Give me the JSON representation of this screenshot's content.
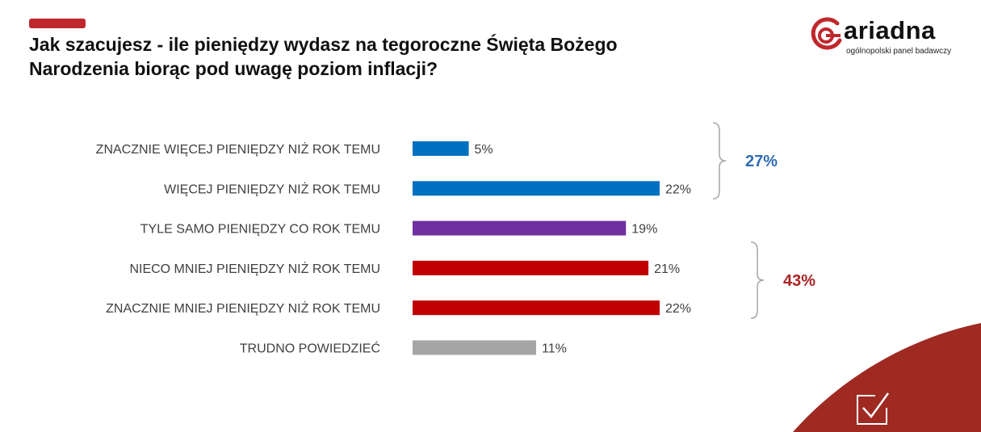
{
  "header": {
    "title_line1": "Jak szacujesz - ile pieniędzy wydasz na tegoroczne Święta Bożego",
    "title_line2": "Narodzenia biorąc pod uwagę poziom inflacji?"
  },
  "logo": {
    "wordmark": "ariadna",
    "tagline": "ogólnopolski panel badawczy",
    "color": "#c0282d"
  },
  "chart_data": {
    "type": "bar",
    "orientation": "horizontal",
    "categories": [
      "ZNACZNIE WIĘCEJ PIENIĘDZY NIŻ ROK TEMU",
      "WIĘCEJ PIENIĘDZY NIŻ ROK TEMU",
      "TYLE SAMO PIENIĘDZY CO ROK TEMU",
      "NIECO MNIEJ PIENIĘDZY NIŻ ROK TEMU",
      "ZNACZNIE MNIEJ PIENIĘDZY NIŻ ROK TEMU",
      "TRUDNO POWIEDZIEĆ"
    ],
    "values": [
      5,
      22,
      19,
      21,
      22,
      11
    ],
    "value_labels": [
      "5%",
      "22%",
      "19%",
      "21%",
      "22%",
      "11%"
    ],
    "colors": [
      "#0070c0",
      "#0070c0",
      "#7030a0",
      "#c00000",
      "#c00000",
      "#a6a6a6"
    ],
    "xlim": [
      0,
      22
    ],
    "grid": false,
    "groups": [
      {
        "label": "27%",
        "from": 0,
        "to": 1,
        "color": "#2e6db4"
      },
      {
        "label": "43%",
        "from": 3,
        "to": 4,
        "color": "#a82424"
      }
    ]
  },
  "decor": {
    "corner_color": "#9e2a22",
    "corner_icon": "checkbox-check-icon"
  }
}
